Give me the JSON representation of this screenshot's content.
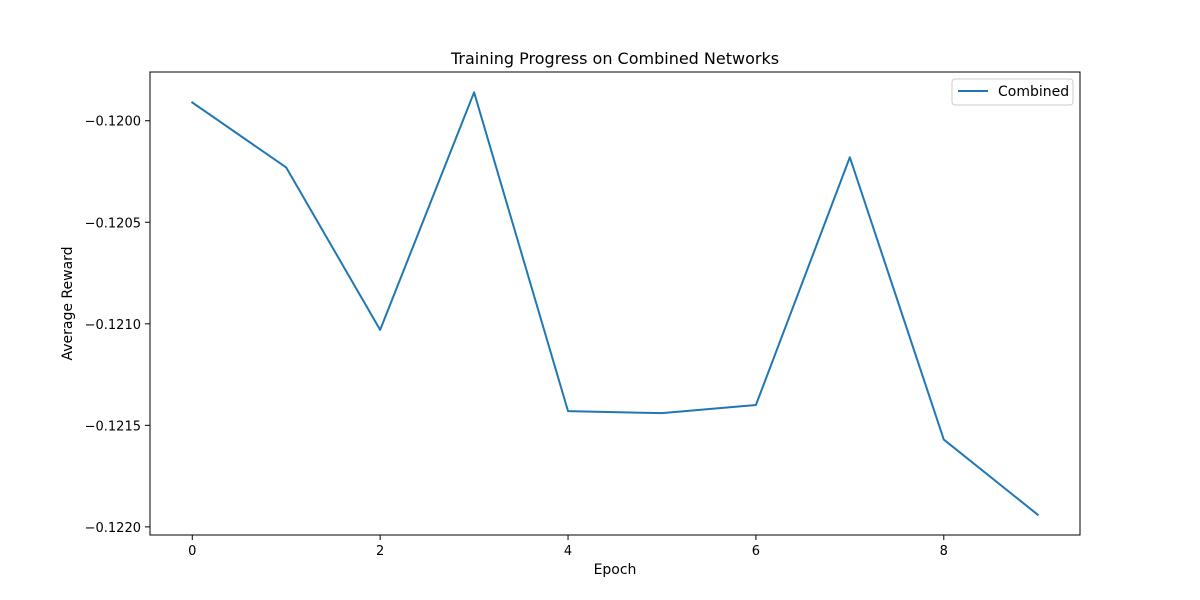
{
  "chart_data": {
    "type": "line",
    "title": "Training Progress on Combined Networks",
    "xlabel": "Epoch",
    "ylabel": "Average Reward",
    "x": [
      0,
      1,
      2,
      3,
      4,
      5,
      6,
      7,
      8,
      9
    ],
    "series": [
      {
        "name": "Combined",
        "color": "#1f77b4",
        "values": [
          -0.11991,
          -0.12023,
          -0.12103,
          -0.11986,
          -0.12143,
          -0.12144,
          -0.1214,
          -0.12018,
          -0.12157,
          -0.12194
        ]
      }
    ],
    "xlim": [
      -0.45,
      9.45
    ],
    "ylim": [
      -0.12204,
      -0.11976
    ],
    "xticks": [
      0,
      2,
      4,
      6,
      8
    ],
    "xtick_labels": [
      "0",
      "2",
      "4",
      "6",
      "8"
    ],
    "yticks": [
      -0.12,
      -0.1205,
      -0.121,
      -0.1215,
      -0.122
    ],
    "ytick_labels": [
      "−0.1200",
      "−0.1205",
      "−0.1210",
      "−0.1215",
      "−0.1220"
    ],
    "grid": false,
    "legend_position": "top-right"
  }
}
